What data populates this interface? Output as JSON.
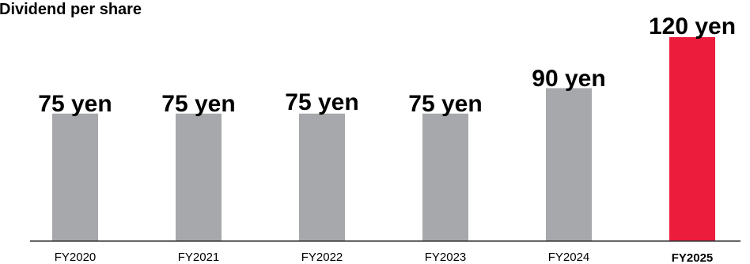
{
  "chart_data": {
    "type": "bar",
    "title": "Dividend per share",
    "xlabel": "",
    "ylabel": "",
    "categories": [
      "FY2020",
      "FY2021",
      "FY2022",
      "FY2023",
      "FY2024",
      "FY2025"
    ],
    "values": [
      75,
      75,
      75,
      75,
      90,
      120
    ],
    "data_labels": [
      "75 yen",
      "75 yen",
      "75 yen",
      "75 yen",
      "90 yen",
      "120 yen"
    ],
    "ylim": [
      0,
      120
    ],
    "grid": false,
    "highlight_index": 5,
    "colors": {
      "bar": "#a7a8ab",
      "highlight": "#ec1c3c",
      "axis": "#333333",
      "text": "#000000"
    }
  }
}
